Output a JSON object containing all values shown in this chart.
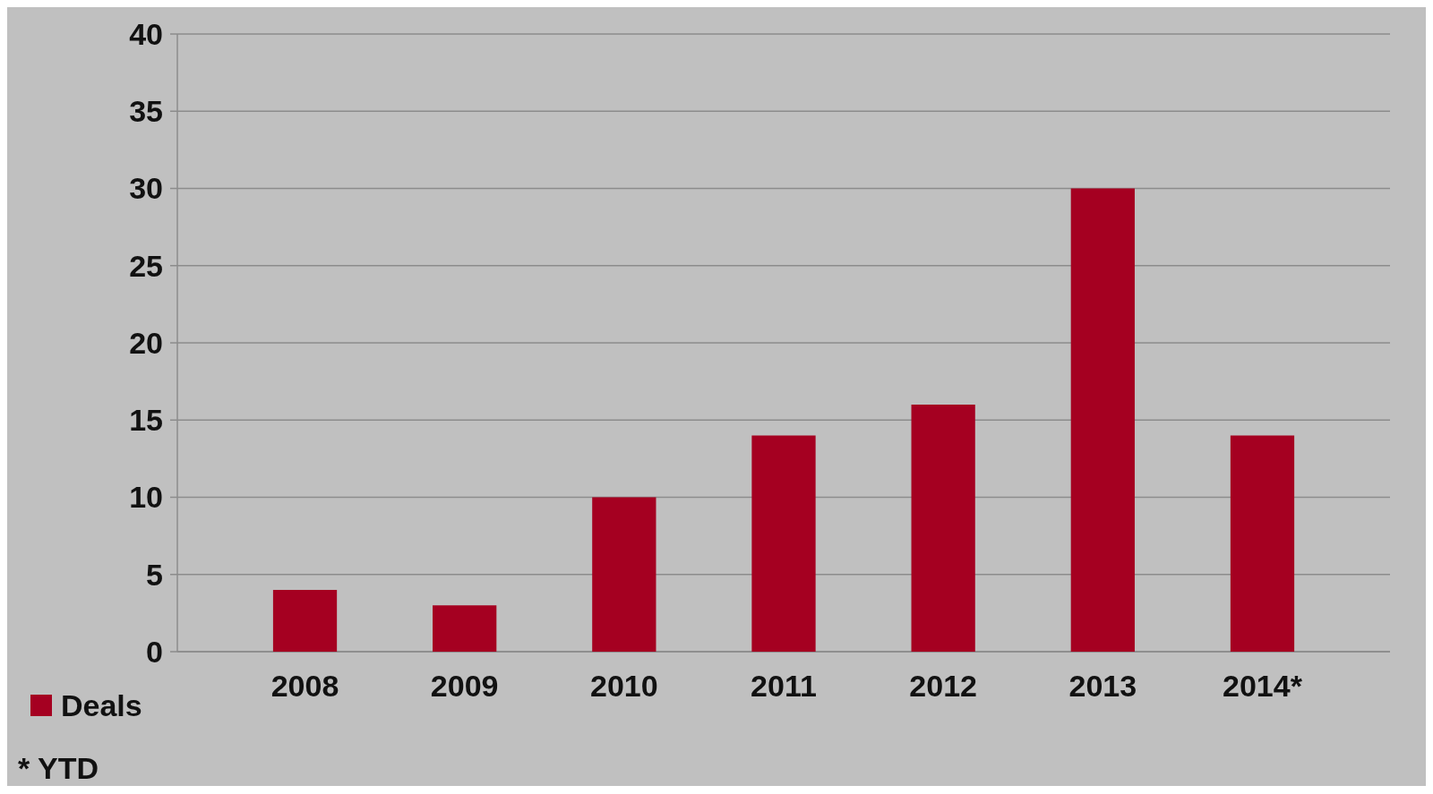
{
  "chart_data": {
    "type": "bar",
    "categories": [
      "2008",
      "2009",
      "2010",
      "2011",
      "2012",
      "2013",
      "2014*"
    ],
    "series": [
      {
        "name": "Deals",
        "color": "#a50021",
        "values": [
          4,
          3,
          10,
          14,
          16,
          30,
          14
        ]
      }
    ],
    "ylim": [
      0,
      40
    ],
    "yticks": [
      0,
      5,
      10,
      15,
      20,
      25,
      30,
      35,
      40
    ],
    "grid": "y",
    "legend": "bottom left",
    "annotations": [
      "* YTD"
    ]
  }
}
